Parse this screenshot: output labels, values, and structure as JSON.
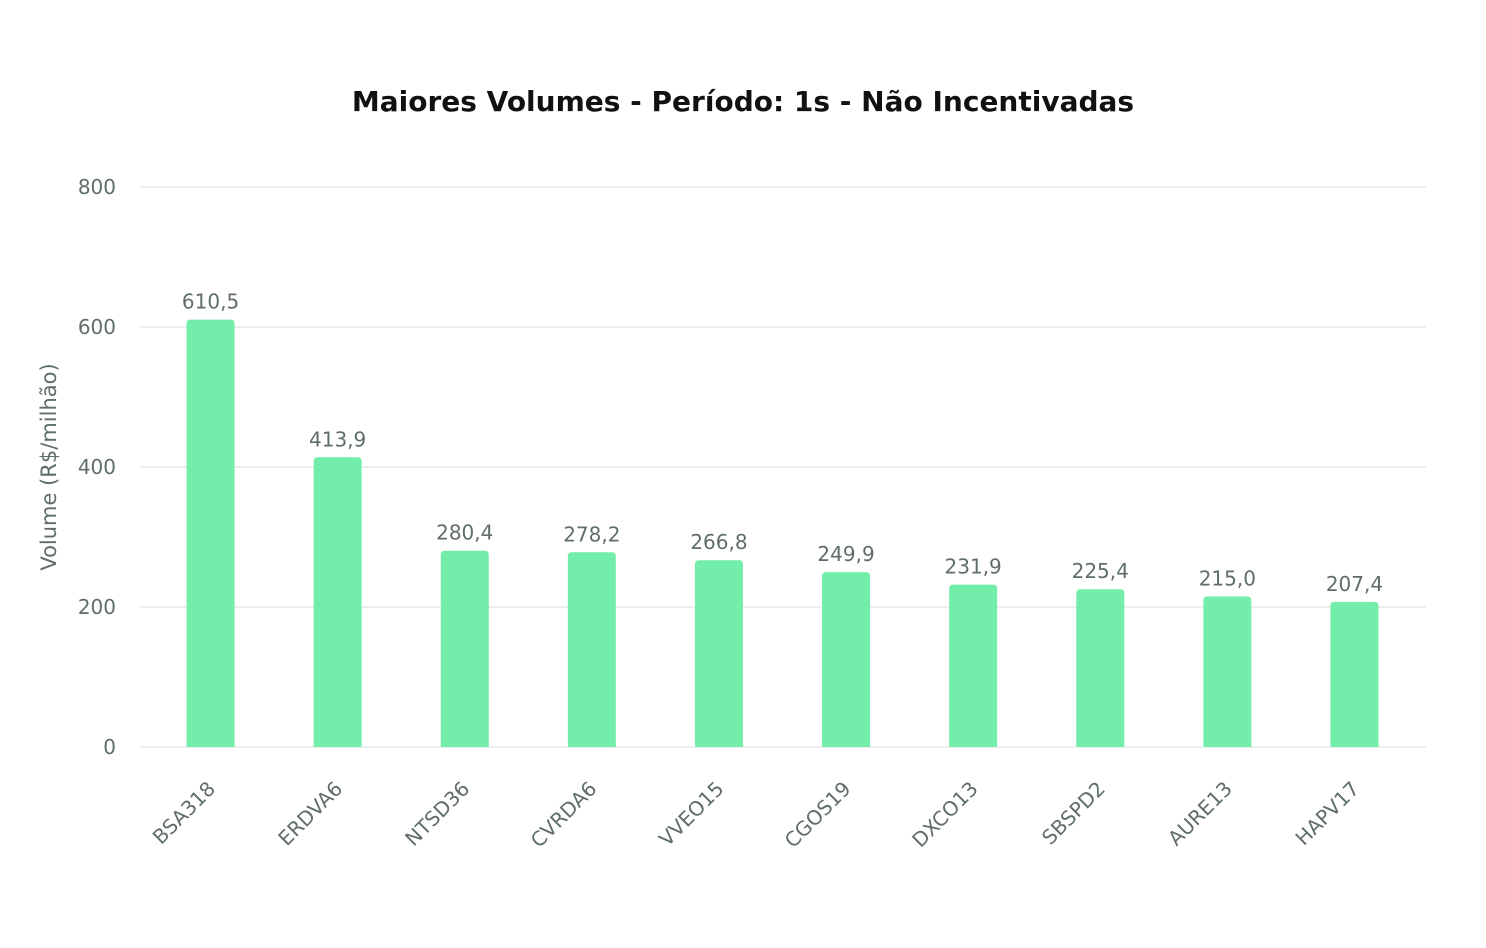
{
  "chart_data": {
    "type": "bar",
    "title": "Maiores Volumes - Período: 1s - Não Incentivadas",
    "xlabel": "",
    "ylabel": "Volume (R$/milhão)",
    "ylim": [
      0,
      800
    ],
    "yticks": [
      0,
      200,
      400,
      600,
      800
    ],
    "categories": [
      "BSA318",
      "ERDVA6",
      "NTSD36",
      "CVRDA6",
      "VVEO15",
      "CGOS19",
      "DXCO13",
      "SBSPD2",
      "AURE13",
      "HAPV17"
    ],
    "values": [
      610.5,
      413.9,
      280.4,
      278.2,
      266.8,
      249.9,
      231.9,
      225.4,
      215.0,
      207.4
    ],
    "value_labels": [
      "610,5",
      "413,9",
      "280,4",
      "278,2",
      "266,8",
      "249,9",
      "231,9",
      "225,4",
      "215,0",
      "207,4"
    ],
    "grid": true,
    "legend": "none",
    "bar_color": "#72eeaa"
  }
}
